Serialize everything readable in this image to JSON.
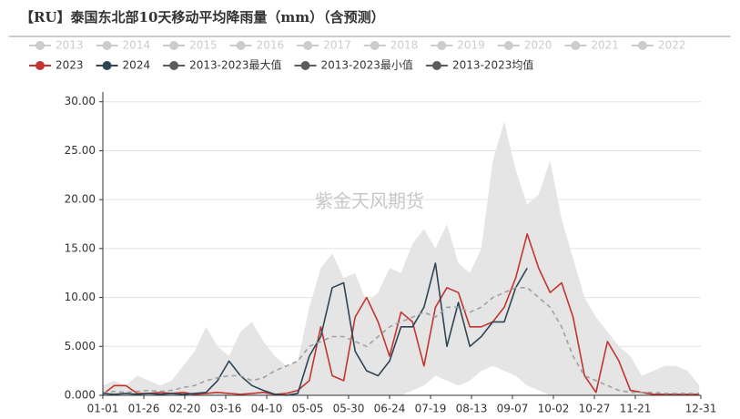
{
  "chart_data": {
    "type": "line",
    "title": "【RU】泰国东北部10天移动平均降雨量（mm）（含预测）",
    "watermark": "紫金天风期货",
    "inactive_legend": [
      "2013",
      "2014",
      "2015",
      "2016",
      "2017",
      "2018",
      "2019",
      "2020",
      "2021",
      "2022"
    ],
    "inactive_color": "#cccccc",
    "x": [
      0,
      7,
      14,
      21,
      28,
      35,
      42,
      49,
      56,
      63,
      70,
      77,
      84,
      91,
      98,
      105,
      112,
      119,
      126,
      133,
      140,
      147,
      154,
      161,
      168,
      175,
      182,
      189,
      196,
      203,
      210,
      217,
      224,
      231,
      238,
      245,
      252,
      259,
      266,
      273,
      280,
      287,
      294,
      301,
      308,
      315,
      322,
      329,
      336,
      343,
      350,
      357,
      364
    ],
    "xlim": [
      0,
      365
    ],
    "xticks": [
      {
        "value": 0,
        "label": "01-01"
      },
      {
        "value": 25,
        "label": "01-26"
      },
      {
        "value": 50,
        "label": "02-20"
      },
      {
        "value": 75,
        "label": "03-16"
      },
      {
        "value": 100,
        "label": "04-10"
      },
      {
        "value": 125,
        "label": "05-05"
      },
      {
        "value": 150,
        "label": "05-30"
      },
      {
        "value": 175,
        "label": "06-24"
      },
      {
        "value": 200,
        "label": "07-19"
      },
      {
        "value": 225,
        "label": "08-13"
      },
      {
        "value": 250,
        "label": "09-07"
      },
      {
        "value": 275,
        "label": "10-02"
      },
      {
        "value": 300,
        "label": "10-27"
      },
      {
        "value": 325,
        "label": "11-21"
      },
      {
        "value": 365,
        "label": "12-31"
      }
    ],
    "ylim": [
      0,
      31
    ],
    "yticks": [
      {
        "value": 0,
        "label": "0.000"
      },
      {
        "value": 5,
        "label": "5.000"
      },
      {
        "value": 10,
        "label": "10.00"
      },
      {
        "value": 15,
        "label": "15.00"
      },
      {
        "value": 20,
        "label": "20.00"
      },
      {
        "value": 25,
        "label": "25.00"
      },
      {
        "value": 30,
        "label": "30.00"
      }
    ],
    "grid": true,
    "series": [
      {
        "name": "2023",
        "color": "#c23531",
        "style": "solid",
        "values": [
          0.1,
          1.0,
          1.0,
          0.2,
          0.2,
          0.3,
          0.2,
          0.3,
          0.1,
          0.2,
          0.3,
          0.2,
          0.1,
          0.2,
          0.3,
          0.1,
          0.2,
          0.5,
          1.5,
          7.0,
          2.0,
          1.5,
          8.0,
          10.0,
          7.5,
          4.0,
          8.5,
          7.5,
          3.0,
          9.0,
          11.0,
          10.5,
          7.0,
          7.0,
          7.5,
          9.0,
          12.0,
          16.5,
          13.0,
          10.5,
          11.5,
          8.0,
          2.0,
          0.3,
          5.5,
          3.5,
          0.5,
          0.3,
          0.1,
          0.1,
          0.1,
          0.1,
          0.1
        ]
      },
      {
        "name": "2024",
        "color": "#2f4554",
        "style": "solid",
        "values": [
          0.2,
          0.1,
          0.2,
          0.1,
          0.2,
          0.1,
          0.2,
          0.1,
          0.2,
          0.3,
          1.5,
          3.5,
          2.0,
          1.0,
          0.5,
          0.1,
          0,
          0.2,
          4.0,
          6.0,
          11.0,
          11.5,
          4.5,
          2.5,
          2.0,
          3.5,
          7.0,
          7.0,
          9.0,
          13.5,
          5.0,
          9.5,
          5.0,
          6.0,
          7.5,
          7.5,
          11.0,
          13.0,
          null,
          null,
          null,
          null,
          null,
          null,
          null,
          null,
          null,
          null,
          null,
          null,
          null,
          null,
          null
        ]
      },
      {
        "name": "2013-2023最大值",
        "color": "#5c5c5c",
        "style": "area",
        "fill": "#e5e5e5",
        "values": [
          1.0,
          1.5,
          1.0,
          2.0,
          1.5,
          1.0,
          1.5,
          3.0,
          4.5,
          7.0,
          5.0,
          4.0,
          6.5,
          7.5,
          5.5,
          4.0,
          3.0,
          3.5,
          9.0,
          13.0,
          14.5,
          12.0,
          12.5,
          9.5,
          10.5,
          13.0,
          12.5,
          15.5,
          17.0,
          15.0,
          17.5,
          13.5,
          12.5,
          15.0,
          24.0,
          28.0,
          23.0,
          19.5,
          20.5,
          24.0,
          18.0,
          14.0,
          10.0,
          8.0,
          6.5,
          5.0,
          4.0,
          2.0,
          2.5,
          3.0,
          3.0,
          2.5,
          1.0
        ]
      },
      {
        "name": "2013-2023最小值",
        "color": "#5c5c5c",
        "style": "area",
        "fill": "#ffffff",
        "values": [
          0,
          0,
          0,
          0,
          0,
          0,
          0,
          0,
          0,
          0,
          0,
          0,
          0,
          0,
          0,
          0,
          0,
          0,
          0,
          0,
          0,
          0,
          0,
          0,
          0,
          0,
          0,
          0.5,
          1.0,
          2.0,
          1.5,
          1.0,
          1.5,
          2.5,
          3.0,
          2.5,
          2.0,
          1.0,
          0.5,
          0,
          0,
          0,
          0,
          0,
          0,
          0,
          0,
          0,
          0,
          0,
          0,
          0,
          0
        ]
      },
      {
        "name": "2013-2023均值",
        "color": "#a0a0a0",
        "legend_color": "#5c5c5c",
        "style": "dashed",
        "values": [
          0.3,
          0.4,
          0.3,
          0.4,
          0.5,
          0.4,
          0.5,
          0.8,
          1.0,
          1.5,
          1.8,
          2.0,
          2.0,
          1.5,
          1.8,
          2.5,
          3.0,
          3.5,
          5.0,
          5.5,
          6.0,
          6.0,
          5.5,
          5.0,
          6.0,
          7.0,
          7.5,
          8.0,
          8.5,
          8.0,
          9.0,
          9.0,
          8.5,
          9.0,
          10.0,
          10.5,
          11.0,
          11.0,
          10.0,
          9.0,
          7.0,
          4.0,
          2.0,
          1.5,
          1.0,
          0.5,
          0.3,
          0.3,
          0.3,
          0.2,
          0.2,
          0.2,
          0.2
        ]
      }
    ]
  }
}
